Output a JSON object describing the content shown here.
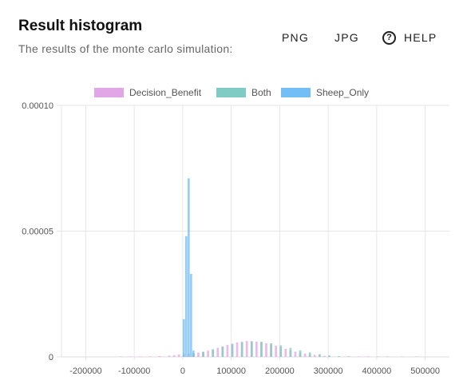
{
  "header": {
    "title": "Result histogram",
    "subtitle": "The results of the monte carlo simulation:"
  },
  "toolbar": {
    "png_label": "PNG",
    "jpg_label": "JPG",
    "help_label": "HELP",
    "help_icon": "question-circle-icon"
  },
  "chart_data": {
    "type": "bar",
    "title": "",
    "xlabel": "",
    "ylabel": "",
    "xlim": [
      -250000,
      550000
    ],
    "ylim": [
      0,
      0.0001
    ],
    "grid": true,
    "legend_position": "top",
    "x_ticks": [
      "-200000",
      "-100000",
      "0",
      "100000",
      "200000",
      "300000",
      "400000",
      "500000"
    ],
    "y_ticks": [
      "0",
      "0.00005",
      "0.00010"
    ],
    "bin_width": 5000,
    "series": [
      {
        "name": "Decision_Benefit",
        "color": "#e1a6e6",
        "bins": [
          [
            -130000,
            1e-07
          ],
          [
            -110000,
            1e-07
          ],
          [
            -90000,
            2e-07
          ],
          [
            -70000,
            2e-07
          ],
          [
            -50000,
            3e-07
          ],
          [
            -30000,
            5e-07
          ],
          [
            -20000,
            7e-07
          ],
          [
            -10000,
            1e-06
          ],
          [
            0,
            1.2e-06
          ],
          [
            10000,
            1.3e-06
          ],
          [
            20000,
            1.5e-06
          ],
          [
            30000,
            1.7e-06
          ],
          [
            40000,
            2e-06
          ],
          [
            50000,
            2.5e-06
          ],
          [
            60000,
            3e-06
          ],
          [
            70000,
            3.6e-06
          ],
          [
            80000,
            4.2e-06
          ],
          [
            90000,
            4.8e-06
          ],
          [
            100000,
            5.3e-06
          ],
          [
            110000,
            5.8e-06
          ],
          [
            120000,
            6.1e-06
          ],
          [
            130000,
            6.3e-06
          ],
          [
            140000,
            6.3e-06
          ],
          [
            150000,
            6.1e-06
          ],
          [
            160000,
            5.8e-06
          ],
          [
            170000,
            5.4e-06
          ],
          [
            180000,
            4.9e-06
          ],
          [
            190000,
            4.4e-06
          ],
          [
            200000,
            3.8e-06
          ],
          [
            210000,
            3.2e-06
          ],
          [
            220000,
            2.7e-06
          ],
          [
            230000,
            2.1e-06
          ],
          [
            240000,
            1.7e-06
          ],
          [
            250000,
            1.3e-06
          ],
          [
            260000,
            1e-06
          ],
          [
            270000,
            8e-07
          ],
          [
            280000,
            6e-07
          ],
          [
            290000,
            4e-07
          ],
          [
            300000,
            3e-07
          ],
          [
            320000,
            2e-07
          ],
          [
            340000,
            2e-07
          ],
          [
            360000,
            1e-07
          ],
          [
            380000,
            1e-07
          ],
          [
            400000,
            1e-07
          ],
          [
            420000,
            1e-07
          ],
          [
            450000,
            1e-07
          ],
          [
            480000,
            1e-07
          ]
        ]
      },
      {
        "name": "Both",
        "color": "#80cbc4",
        "bins": [
          [
            0,
            8e-07
          ],
          [
            20000,
            1.2e-06
          ],
          [
            40000,
            2e-06
          ],
          [
            60000,
            3e-06
          ],
          [
            80000,
            4e-06
          ],
          [
            100000,
            5e-06
          ],
          [
            120000,
            5.7e-06
          ],
          [
            140000,
            6.1e-06
          ],
          [
            160000,
            6e-06
          ],
          [
            180000,
            5.4e-06
          ],
          [
            200000,
            4.6e-06
          ],
          [
            220000,
            3.6e-06
          ],
          [
            240000,
            2.6e-06
          ],
          [
            260000,
            1.8e-06
          ],
          [
            280000,
            1.1e-06
          ],
          [
            300000,
            6e-07
          ],
          [
            320000,
            3e-07
          ],
          [
            340000,
            1e-07
          ]
        ]
      },
      {
        "name": "Sheep_Only",
        "color": "#73bef4",
        "bins": [
          [
            0,
            1.5e-05
          ],
          [
            5000,
            4.8e-05
          ],
          [
            10000,
            7.1e-05
          ],
          [
            15000,
            3.3e-05
          ],
          [
            20000,
            2.5e-06
          ]
        ]
      }
    ]
  }
}
